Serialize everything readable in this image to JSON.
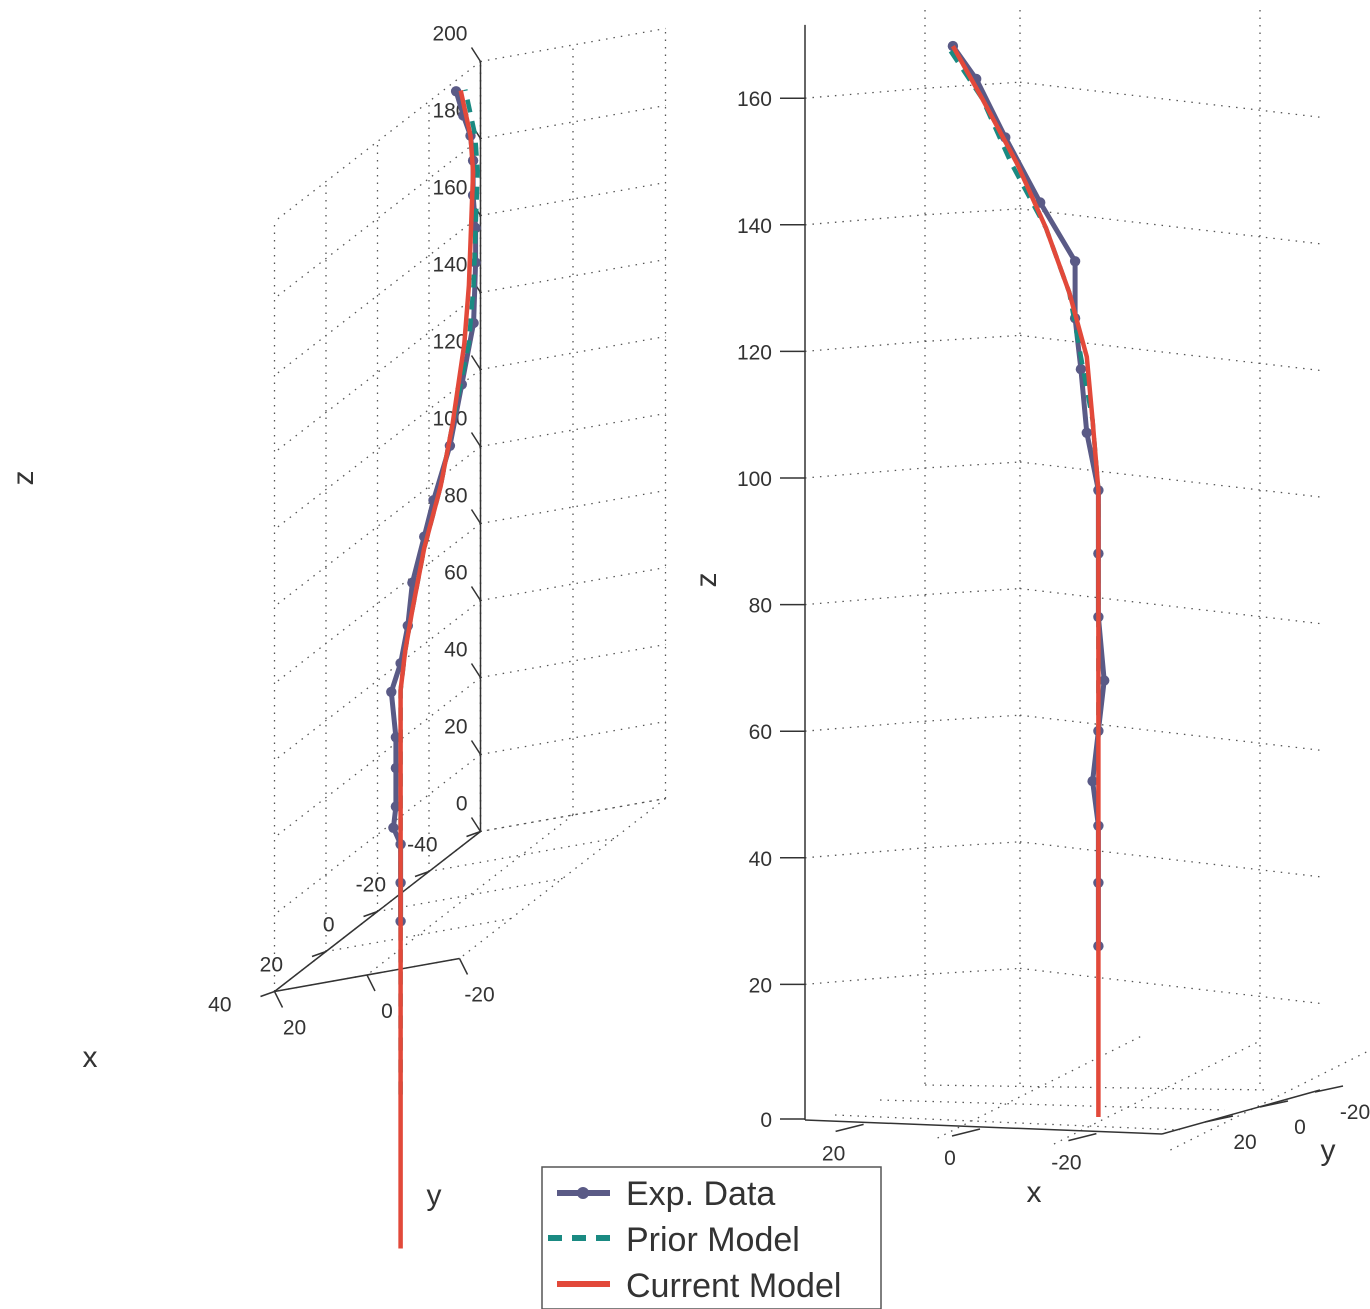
{
  "legend": {
    "items": [
      {
        "label": "Exp. Data",
        "color": "#5a5a86"
      },
      {
        "label": "Prior Model",
        "color": "#1a8a82"
      },
      {
        "label": "Current Model",
        "color": "#e2493a"
      }
    ]
  },
  "chart_data": [
    {
      "type": "line",
      "view": "3d",
      "xlabel": "x",
      "ylabel": "y",
      "zlabel": "z",
      "xlim": [
        -40,
        40
      ],
      "ylim": [
        -20,
        20
      ],
      "zlim": [
        0,
        200
      ],
      "x_ticks": [
        "40",
        "20",
        "0",
        "-20",
        "-40"
      ],
      "y_ticks": [
        "20",
        "0",
        "-20"
      ],
      "z_ticks": [
        "0",
        "20",
        "40",
        "60",
        "80",
        "100",
        "120",
        "140",
        "160",
        "180",
        "200"
      ],
      "grid": true,
      "series": [
        {
          "name": "Exp. Data",
          "marker": "circle",
          "points": [
            [
              9,
              10,
              0
            ],
            [
              9,
              10,
              10
            ],
            [
              9,
              10,
              20
            ],
            [
              10,
              11,
              25
            ],
            [
              9,
              11,
              30
            ],
            [
              9,
              11,
              40
            ],
            [
              9,
              11,
              48
            ],
            [
              9,
              12,
              60
            ],
            [
              9,
              10,
              67
            ],
            [
              8,
              9,
              76
            ],
            [
              8,
              8,
              87
            ],
            [
              7,
              6,
              98
            ],
            [
              7,
              4,
              107
            ],
            [
              6,
              1,
              120
            ],
            [
              5,
              -1,
              135
            ],
            [
              4,
              -3,
              150
            ],
            [
              5,
              -4,
              166
            ],
            [
              5,
              -4,
              175
            ],
            [
              6,
              -4,
              184
            ],
            [
              6,
              -4,
              193
            ],
            [
              7,
              -4,
              200
            ],
            [
              8,
              -3,
              206
            ],
            [
              9,
              -2,
              213
            ]
          ]
        },
        {
          "name": "Prior Model",
          "style": "dashed",
          "points": [
            [
              9,
              10,
              -45
            ],
            [
              9,
              10,
              -30
            ],
            [
              9,
              10,
              0
            ],
            [
              9,
              10,
              20
            ],
            [
              9,
              10,
              40
            ],
            [
              9,
              10,
              60
            ],
            [
              9,
              9,
              70
            ],
            [
              8,
              8,
              80
            ],
            [
              7,
              6,
              95
            ],
            [
              6,
              3,
              110
            ],
            [
              5,
              1,
              125
            ],
            [
              4,
              -2,
              145
            ],
            [
              4,
              -3,
              160
            ],
            [
              5,
              -4,
              175
            ],
            [
              6,
              -5,
              190
            ],
            [
              7,
              -5,
              200
            ],
            [
              9,
              -4,
              213
            ]
          ]
        },
        {
          "name": "Current Model",
          "style": "solid",
          "points": [
            [
              9,
              10,
              -85
            ],
            [
              9,
              10,
              -60
            ],
            [
              9,
              10,
              -30
            ],
            [
              9,
              10,
              0
            ],
            [
              9,
              10,
              20
            ],
            [
              9,
              10,
              40
            ],
            [
              9,
              10,
              60
            ],
            [
              9,
              9,
              70
            ],
            [
              8,
              8,
              80
            ],
            [
              7,
              6,
              95
            ],
            [
              6,
              3,
              110
            ],
            [
              5,
              1,
              125
            ],
            [
              4,
              -1,
              145
            ],
            [
              4,
              -2,
              160
            ],
            [
              5,
              -3,
              175
            ],
            [
              6,
              -4,
              190
            ],
            [
              7,
              -4,
              200
            ],
            [
              9,
              -3,
              213
            ]
          ]
        }
      ]
    },
    {
      "type": "line",
      "view": "3d",
      "xlabel": "x",
      "ylabel": "y",
      "zlabel": "z",
      "xlim": [
        -30,
        30
      ],
      "ylim": [
        -20,
        20
      ],
      "zlim": [
        0,
        170
      ],
      "x_ticks": [
        "20",
        "0",
        "-20"
      ],
      "y_ticks": [
        "20",
        "0",
        "-20"
      ],
      "z_ticks": [
        "0",
        "20",
        "40",
        "60",
        "80",
        "100",
        "120",
        "140",
        "160"
      ],
      "grid": true,
      "series": [
        {
          "name": "Exp. Data",
          "marker": "circle",
          "points": [
            [
              -20,
              0,
              27
            ],
            [
              -20,
              0,
              37
            ],
            [
              -20,
              0,
              46
            ],
            [
              -19,
              0,
              53
            ],
            [
              -20,
              0,
              61
            ],
            [
              -21,
              0,
              69
            ],
            [
              -20,
              0,
              79
            ],
            [
              -20,
              0,
              89
            ],
            [
              -20,
              0,
              99
            ],
            [
              -18,
              0,
              108
            ],
            [
              -17,
              0,
              118
            ],
            [
              -16,
              0,
              126
            ],
            [
              -16,
              0,
              135
            ],
            [
              -10,
              0,
              144
            ],
            [
              -4,
              0,
              154
            ],
            [
              1,
              0,
              163
            ],
            [
              5,
              0,
              168
            ]
          ]
        },
        {
          "name": "Prior Model",
          "style": "dashed",
          "points": [
            [
              -20,
              0,
              60
            ],
            [
              -20,
              0,
              80
            ],
            [
              -20,
              0,
              99
            ],
            [
              -19,
              0,
              110
            ],
            [
              -17,
              0,
              120
            ],
            [
              -15,
              0,
              130
            ],
            [
              -11,
              0,
              140
            ],
            [
              -5,
              0,
              150
            ],
            [
              0,
              0,
              160
            ],
            [
              6,
              0,
              168
            ]
          ]
        },
        {
          "name": "Current Model",
          "style": "solid",
          "points": [
            [
              -20,
              0,
              0
            ],
            [
              -20,
              0,
              20
            ],
            [
              -20,
              0,
              40
            ],
            [
              -20,
              0,
              60
            ],
            [
              -20,
              0,
              80
            ],
            [
              -20,
              0,
              99
            ],
            [
              -19,
              0,
              110
            ],
            [
              -18,
              0,
              120
            ],
            [
              -15,
              0,
              130
            ],
            [
              -11,
              0,
              140
            ],
            [
              -6,
              0,
              150
            ],
            [
              0,
              0,
              160
            ],
            [
              5,
              0,
              168
            ]
          ]
        }
      ]
    }
  ]
}
